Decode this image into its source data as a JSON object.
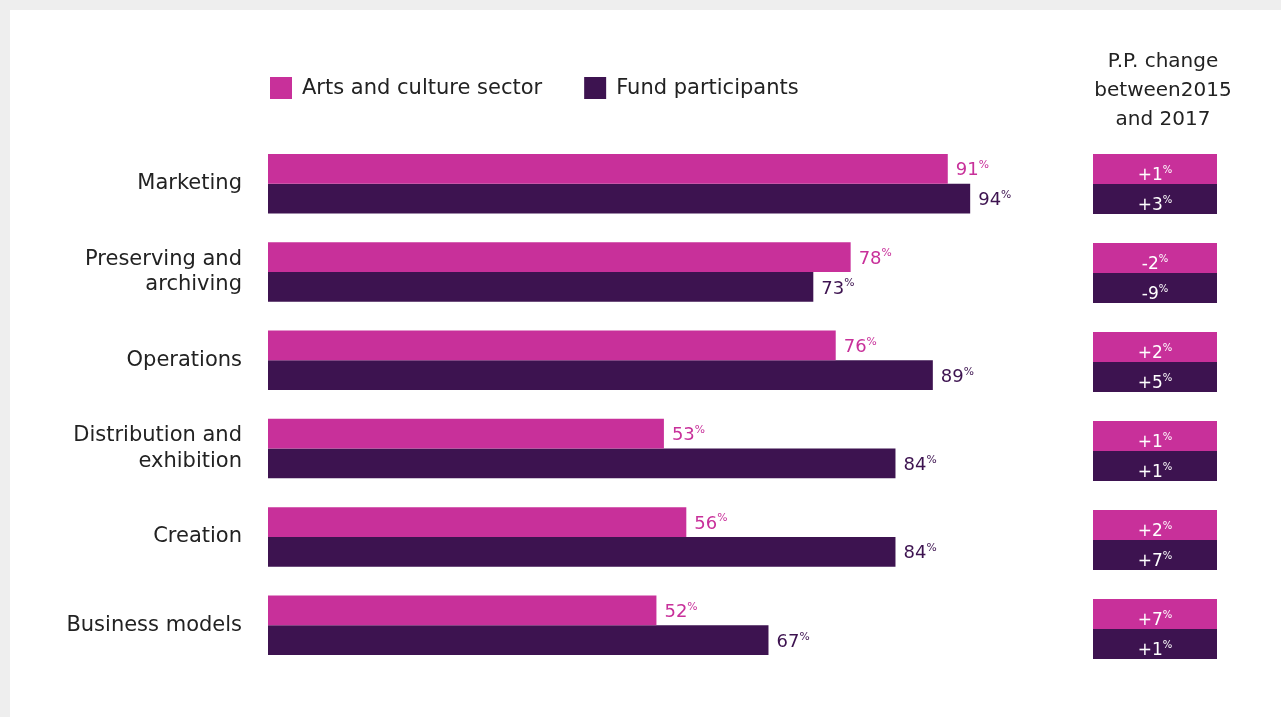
{
  "chart_data": [
    {
      "type": "bar",
      "orientation": "horizontal",
      "categories": [
        "Marketing",
        "Preserving and archiving",
        "Operations",
        "Distribution and exhibition",
        "Creation",
        "Business models"
      ],
      "series": [
        {
          "name": "Arts and culture sector",
          "color": "#c8309a",
          "values": [
            91,
            78,
            76,
            53,
            56,
            52
          ],
          "value_labels": [
            "91$^{%}$",
            "78$^{%}$",
            "76$^{%}$",
            "53$^{%}$",
            "56$^{%}$",
            "52$^{%}$"
          ]
        },
        {
          "name": "Fund participants",
          "color": "#3d1350",
          "values": [
            94,
            73,
            89,
            84,
            84,
            67
          ],
          "value_labels": [
            "94$^{%}$",
            "73$^{%}$",
            "89$^{%}$",
            "84$^{%}$",
            "84$^{%}$",
            "67$^{%}$"
          ]
        }
      ],
      "legend": "top left"
    },
    {
      "type": "other",
      "title": "P.P. change between2015 and 2017",
      "annotations": [
        "+1$^{%}$",
        "+3$^{%}$",
        "-2$^{%}$",
        "-9$^{%}$",
        "+2$^{%}$",
        "+5$^{%}$",
        "+1$^{%}$",
        "+1$^{%}$",
        "+2$^{%}$",
        "+7$^{%}$",
        "+7$^{%}$",
        "+1$^{%}$"
      ]
    }
  ]
}
